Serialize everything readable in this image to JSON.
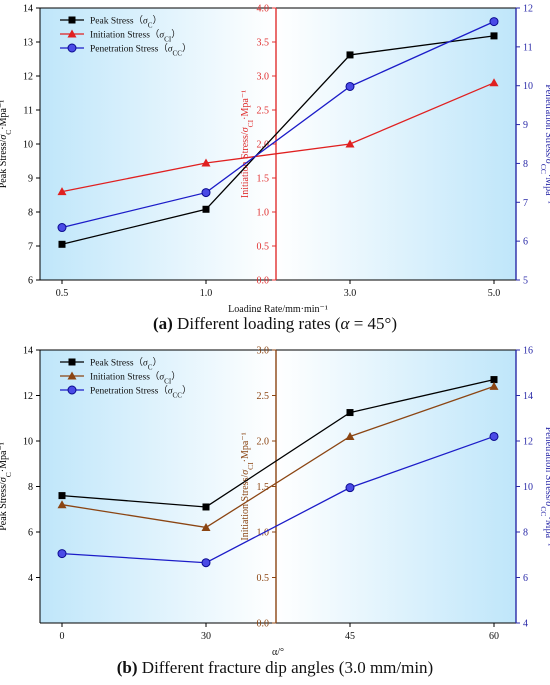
{
  "chart_data": [
    {
      "type": "line",
      "caption": {
        "label": "(a)",
        "text": " Different loading rates (",
        "symbol": "α",
        "tail": " = 45°)"
      },
      "xlabel": "Loading Rate/mm·min⁻¹",
      "categories": [
        "0.5",
        "1.0",
        "3.0",
        "5.0"
      ],
      "axes": {
        "left": {
          "label": "Peak Stress/σC·Mpa⁻¹",
          "ylim": [
            6,
            14
          ],
          "ticks": [
            "6",
            "7",
            "8",
            "9",
            "10",
            "11",
            "12",
            "13",
            "14"
          ],
          "color": "#000000"
        },
        "middle": {
          "label": "Initiation Stress/σCI·Mpa⁻¹",
          "ylim": [
            0,
            4.0
          ],
          "ticks": [
            "0.0",
            "0.5",
            "1.0",
            "1.5",
            "2.0",
            "2.5",
            "3.0",
            "3.5",
            "4.0"
          ],
          "color": "#e03030"
        },
        "right": {
          "label": "Penetration Stress/σCC·Mpa⁻¹",
          "ylim": [
            5,
            12
          ],
          "ticks": [
            "5",
            "6",
            "7",
            "8",
            "9",
            "10",
            "11",
            "12"
          ],
          "color": "#2a2aa8"
        }
      },
      "series": [
        {
          "name": "Peak Stress（σC）",
          "axis": "left",
          "marker": "square",
          "color": "#000000",
          "values": [
            7.05,
            8.08,
            12.62,
            13.18
          ]
        },
        {
          "name": "Initiation Stress（σCI）",
          "axis": "middle",
          "marker": "triangle",
          "color": "#e02020",
          "values": [
            1.3,
            1.72,
            2.0,
            2.9
          ]
        },
        {
          "name": "Penetration Stress（σCC）",
          "axis": "right",
          "marker": "circle",
          "color": "#1c1cc8",
          "values": [
            6.35,
            7.25,
            9.98,
            11.65
          ]
        }
      ],
      "legend": "top-left",
      "grid": false
    },
    {
      "type": "line",
      "caption": {
        "label": "(b)",
        "text": " Different fracture dip angles (3.0 mm/min)"
      },
      "xlabel": "α/°",
      "categories": [
        "0",
        "30",
        "45",
        "60"
      ],
      "axes": {
        "left": {
          "label": "Peak Stress/σC·Mpa⁻¹",
          "ylim": [
            2,
            14
          ],
          "ticks": [
            "4",
            "6",
            "8",
            "10",
            "12",
            "14"
          ],
          "color": "#000000"
        },
        "middle": {
          "label": "Initiation Stress/σCI·Mpa⁻¹",
          "ylim": [
            0,
            3.0
          ],
          "ticks": [
            "0.0",
            "0.5",
            "1.0",
            "1.5",
            "2.0",
            "2.5",
            "3.0"
          ],
          "color": "#8b4513"
        },
        "right": {
          "label": "Penetration Stress/σCC·Mpa⁻¹",
          "ylim": [
            4,
            16
          ],
          "ticks": [
            "4",
            "6",
            "8",
            "10",
            "12",
            "14",
            "16"
          ],
          "color": "#2a2aa8"
        }
      },
      "series": [
        {
          "name": "Peak Stress（σC）",
          "axis": "left",
          "marker": "square",
          "color": "#000000",
          "values": [
            7.6,
            7.1,
            11.25,
            12.7
          ]
        },
        {
          "name": "Initiation Stress（σCI）",
          "axis": "middle",
          "marker": "triangle",
          "color": "#8b4513",
          "values": [
            1.3,
            1.05,
            2.05,
            2.6
          ]
        },
        {
          "name": "Penetration Stress（σCC）",
          "axis": "right",
          "marker": "circle",
          "color": "#1c1cc8",
          "values": [
            7.05,
            6.65,
            9.95,
            12.2
          ]
        }
      ],
      "legend": "top-left",
      "grid": false
    }
  ]
}
